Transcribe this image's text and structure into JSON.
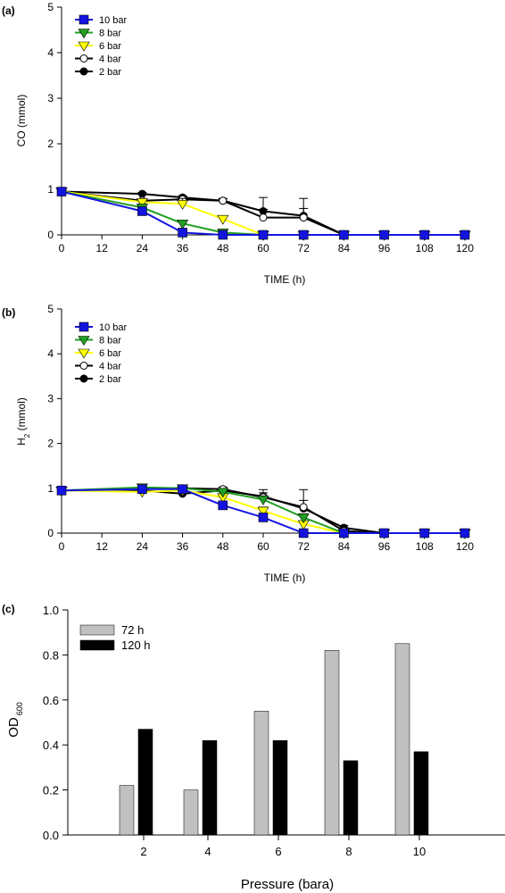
{
  "chart_data": [
    {
      "panel": "(a)",
      "type": "line",
      "xlabel": "TIME (h)",
      "ylabel": "CO (mmol)",
      "xlim": [
        0,
        120
      ],
      "ylim": [
        0,
        5
      ],
      "xticks": [
        0,
        12,
        24,
        36,
        48,
        60,
        72,
        84,
        96,
        108,
        120
      ],
      "yticks": [
        0,
        1,
        2,
        3,
        4,
        5
      ],
      "legend_position": "top-left",
      "x": [
        0,
        24,
        36,
        48,
        60,
        72,
        84,
        96,
        108,
        120
      ],
      "series": [
        {
          "name": "2 bar",
          "color": "#000000",
          "marker": "circle-filled",
          "values": [
            0.95,
            0.9,
            0.82,
            0.75,
            0.52,
            0.42,
            0,
            0,
            0,
            0
          ],
          "errors": [
            0.03,
            0.03,
            0.04,
            0.04,
            0.3,
            0.38,
            0,
            0,
            0,
            0
          ]
        },
        {
          "name": "4 bar",
          "color": "#000000",
          "marker": "circle-open",
          "values": [
            0.95,
            0.75,
            0.78,
            0.75,
            0.38,
            0.38,
            0,
            0,
            0,
            0
          ],
          "errors": [
            0.03,
            0.04,
            0.06,
            0.05,
            0.18,
            0.2,
            0,
            0,
            0,
            0
          ]
        },
        {
          "name": "6 bar",
          "color": "#ffff00",
          "marker": "triangle-down",
          "values": [
            0.95,
            0.72,
            0.68,
            0.35,
            0,
            0,
            0,
            0,
            0,
            0
          ],
          "errors": [
            0.03,
            0.05,
            0.12,
            0.05,
            0,
            0,
            0,
            0,
            0,
            0
          ]
        },
        {
          "name": "8 bar",
          "color": "#22a022",
          "marker": "triangle-down",
          "values": [
            0.95,
            0.6,
            0.25,
            0.05,
            0,
            0,
            0,
            0,
            0,
            0
          ],
          "errors": [
            0.03,
            0.05,
            0.05,
            0.03,
            0,
            0,
            0,
            0,
            0,
            0
          ]
        },
        {
          "name": "10 bar",
          "color": "#1414e0",
          "marker": "square",
          "values": [
            0.95,
            0.52,
            0.05,
            0,
            0,
            0,
            0,
            0,
            0,
            0
          ],
          "errors": [
            0.03,
            0.05,
            0.03,
            0,
            0,
            0,
            0,
            0,
            0,
            0
          ]
        }
      ],
      "legend_order": [
        "10 bar",
        "8 bar",
        "6 bar",
        "4 bar",
        "2 bar"
      ]
    },
    {
      "panel": "(b)",
      "type": "line",
      "xlabel": "TIME (h)",
      "ylabel": "H2 (mmol)",
      "ylabel_parts": [
        "H",
        "2",
        " (mmol)"
      ],
      "xlim": [
        0,
        120
      ],
      "ylim": [
        0,
        5
      ],
      "xticks": [
        0,
        12,
        24,
        36,
        48,
        60,
        72,
        84,
        96,
        108,
        120
      ],
      "yticks": [
        0,
        1,
        2,
        3,
        4,
        5
      ],
      "legend_position": "top-left",
      "x": [
        0,
        24,
        36,
        48,
        60,
        72,
        84,
        96,
        108,
        120
      ],
      "series": [
        {
          "name": "2 bar",
          "color": "#000000",
          "marker": "circle-filled",
          "values": [
            0.95,
            0.95,
            0.88,
            0.95,
            0.82,
            0.55,
            0.12,
            0,
            0,
            0
          ],
          "errors": [
            0.03,
            0.05,
            0.05,
            0.05,
            0.15,
            0.42,
            0.05,
            0,
            0,
            0
          ]
        },
        {
          "name": "4 bar",
          "color": "#000000",
          "marker": "circle-open",
          "values": [
            0.95,
            1.0,
            1.0,
            0.98,
            0.8,
            0.58,
            0.05,
            0,
            0,
            0
          ],
          "errors": [
            0.03,
            0.05,
            0.06,
            0.05,
            0.1,
            0.15,
            0.03,
            0,
            0,
            0
          ]
        },
        {
          "name": "6 bar",
          "color": "#ffff00",
          "marker": "triangle-down",
          "values": [
            0.95,
            0.92,
            0.95,
            0.8,
            0.5,
            0.2,
            0,
            0,
            0,
            0
          ],
          "errors": [
            0.03,
            0.05,
            0.05,
            0.05,
            0.08,
            0.05,
            0,
            0,
            0,
            0
          ]
        },
        {
          "name": "8 bar",
          "color": "#22a022",
          "marker": "triangle-down",
          "values": [
            0.95,
            1.02,
            1.0,
            0.92,
            0.75,
            0.35,
            0,
            0,
            0,
            0
          ],
          "errors": [
            0.03,
            0.05,
            0.05,
            0.05,
            0.08,
            0.08,
            0,
            0,
            0,
            0
          ]
        },
        {
          "name": "10 bar",
          "color": "#1414e0",
          "marker": "square",
          "values": [
            0.95,
            0.98,
            0.98,
            0.62,
            0.35,
            0,
            0,
            0,
            0,
            0
          ],
          "errors": [
            0.03,
            0.05,
            0.05,
            0.05,
            0.05,
            0,
            0,
            0,
            0,
            0
          ]
        }
      ],
      "legend_order": [
        "10 bar",
        "8 bar",
        "6 bar",
        "4 bar",
        "2 bar"
      ]
    },
    {
      "panel": "(c)",
      "type": "bar",
      "xlabel": "Pressure (bara)",
      "ylabel": "OD600",
      "ylabel_parts": [
        "OD",
        "600"
      ],
      "categories": [
        "2",
        "4",
        "6",
        "8",
        "10"
      ],
      "ylim": [
        0,
        1.0
      ],
      "yticks": [
        "0.0",
        "0.2",
        "0.4",
        "0.6",
        "0.8",
        "1.0"
      ],
      "legend_position": "top-left",
      "series": [
        {
          "name": "72 h",
          "color": "#c0c0c0",
          "values": [
            0.22,
            0.2,
            0.55,
            0.82,
            0.85
          ]
        },
        {
          "name": "120 h",
          "color": "#000000",
          "values": [
            0.47,
            0.42,
            0.42,
            0.33,
            0.37
          ]
        }
      ]
    }
  ]
}
